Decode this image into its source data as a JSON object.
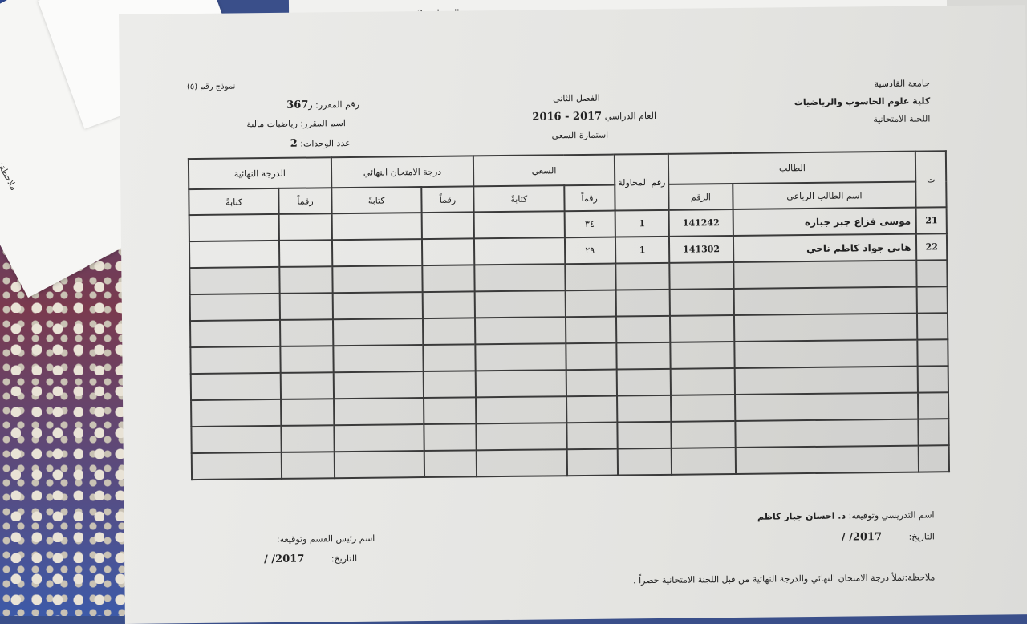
{
  "background_scraps": {
    "top_text": "عدد الوحدات: 2",
    "left_text": "ملاحظة:"
  },
  "header_right": {
    "university": "جامعة القادسية",
    "college": "كلية علوم الحاسوب والرياضيات",
    "committee": "اللجنة الامتحانية"
  },
  "header_center": {
    "semester": "الفصل الثاني",
    "year_label": "العام الدراسي",
    "year_value": "2016 - 2017",
    "form_title": "استمارة السعي"
  },
  "header_left": {
    "form_number": "نموذج رقم (٥)",
    "course_number_label": "رقم المقرر: ر",
    "course_number": "367",
    "course_name": "اسم المقرر: رياضيات مالية",
    "units_label": "عدد الوحدات:",
    "units": "2"
  },
  "table": {
    "headers": {
      "seq": "ت",
      "student": "الطالب",
      "student_name": "اسم الطالب الرباعي",
      "student_id": "الرقم",
      "attempt": "رقم المحاولة",
      "coursework": "السعي",
      "final_exam": "درجة الامتحان النهائي",
      "final_grade": "الدرجة النهائية",
      "digits": "رقماً",
      "words": "كتابةً"
    },
    "rows": [
      {
        "seq": "21",
        "name": "موسى فزاع جبر جباره",
        "id": "141242",
        "attempt": "1",
        "coursework_digits": "٣٤"
      },
      {
        "seq": "22",
        "name": "هاني جواد كاظم ناجي",
        "id": "141302",
        "attempt": "1",
        "coursework_digits": "٢٩"
      }
    ],
    "empty_rows": 8
  },
  "footer": {
    "instructor_label": "اسم التدريسي وتوقيعه:",
    "instructor_name": "د. احسان جبار كاظم",
    "date_label": "التاريخ:",
    "date_value": "/   /2017",
    "head_label": "اسم رئيس القسم وتوقيعه:",
    "head_date_label": "التاريخ:",
    "head_date_value": "/   /2017",
    "note": "ملاحظة:تملأ درجة الامتحان النهائي والدرجة النهائية من قبل اللجنة الامتحانية حصراً ."
  }
}
